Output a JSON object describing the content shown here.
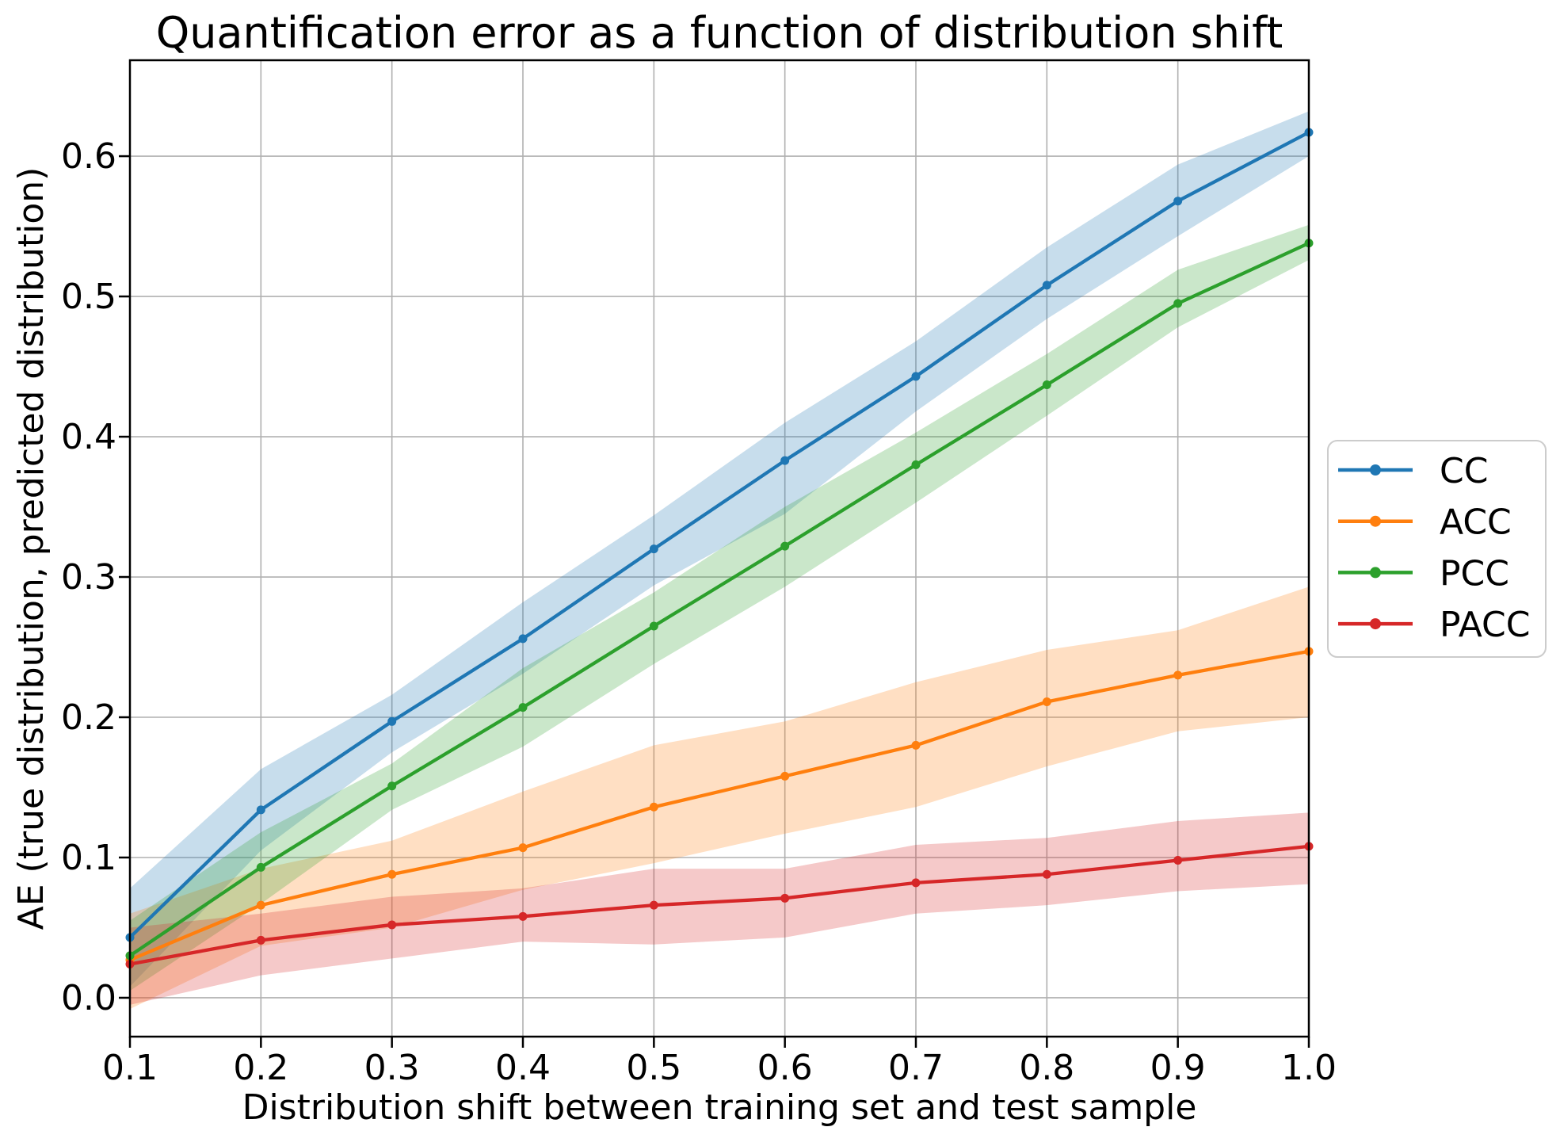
{
  "page": {
    "background": "#ffffff"
  },
  "chart_data": {
    "type": "line",
    "title": "Quantification error as a function of distribution shift",
    "xlabel": "Distribution shift between training set and test sample",
    "ylabel": "AE (true distribution, predicted distribution)",
    "grid": true,
    "grid_color": "#b0b0b0",
    "spine_color": "#000000",
    "legend_position": "center-right-outside",
    "band_alpha": 0.25,
    "xlim": [
      0.1,
      1.0
    ],
    "ylim": [
      -0.0277,
      0.6684
    ],
    "xticks": [
      0.1,
      0.2,
      0.3,
      0.4,
      0.5,
      0.6,
      0.7,
      0.8,
      0.9,
      1.0
    ],
    "yticks": [
      0.0,
      0.1,
      0.2,
      0.3,
      0.4,
      0.5,
      0.6
    ],
    "x": [
      0.1,
      0.2,
      0.3,
      0.4,
      0.5,
      0.6,
      0.7,
      0.8,
      0.9,
      1.0
    ],
    "series": [
      {
        "name": "CC",
        "color": "#1f77b4",
        "values": [
          0.043,
          0.134,
          0.197,
          0.256,
          0.32,
          0.383,
          0.443,
          0.508,
          0.568,
          0.617
        ],
        "band_low": [
          0.008,
          0.105,
          0.175,
          0.231,
          0.294,
          0.345,
          0.418,
          0.484,
          0.543,
          0.6
        ],
        "band_high": [
          0.078,
          0.163,
          0.216,
          0.282,
          0.344,
          0.41,
          0.468,
          0.535,
          0.594,
          0.632
        ]
      },
      {
        "name": "ACC",
        "color": "#ff7f0e",
        "values": [
          0.027,
          0.066,
          0.088,
          0.107,
          0.136,
          0.158,
          0.18,
          0.211,
          0.23,
          0.247
        ],
        "band_low": [
          -0.008,
          0.037,
          0.05,
          0.077,
          0.096,
          0.117,
          0.136,
          0.165,
          0.19,
          0.2
        ],
        "band_high": [
          0.06,
          0.092,
          0.112,
          0.147,
          0.18,
          0.197,
          0.225,
          0.248,
          0.262,
          0.293
        ]
      },
      {
        "name": "PCC",
        "color": "#2ca02c",
        "values": [
          0.03,
          0.093,
          0.151,
          0.207,
          0.265,
          0.322,
          0.38,
          0.437,
          0.495,
          0.538
        ],
        "band_low": [
          0.005,
          0.067,
          0.134,
          0.179,
          0.238,
          0.293,
          0.353,
          0.415,
          0.478,
          0.526
        ],
        "band_high": [
          0.055,
          0.118,
          0.167,
          0.235,
          0.289,
          0.35,
          0.403,
          0.459,
          0.519,
          0.551
        ]
      },
      {
        "name": "PACC",
        "color": "#d62728",
        "values": [
          0.024,
          0.041,
          0.052,
          0.058,
          0.066,
          0.071,
          0.082,
          0.088,
          0.098,
          0.108
        ],
        "band_low": [
          -0.005,
          0.016,
          0.028,
          0.04,
          0.038,
          0.043,
          0.06,
          0.066,
          0.076,
          0.081
        ],
        "band_high": [
          0.05,
          0.06,
          0.072,
          0.078,
          0.092,
          0.092,
          0.109,
          0.114,
          0.126,
          0.132
        ]
      }
    ],
    "legend_entries": [
      "CC",
      "ACC",
      "PCC",
      "PACC"
    ]
  }
}
